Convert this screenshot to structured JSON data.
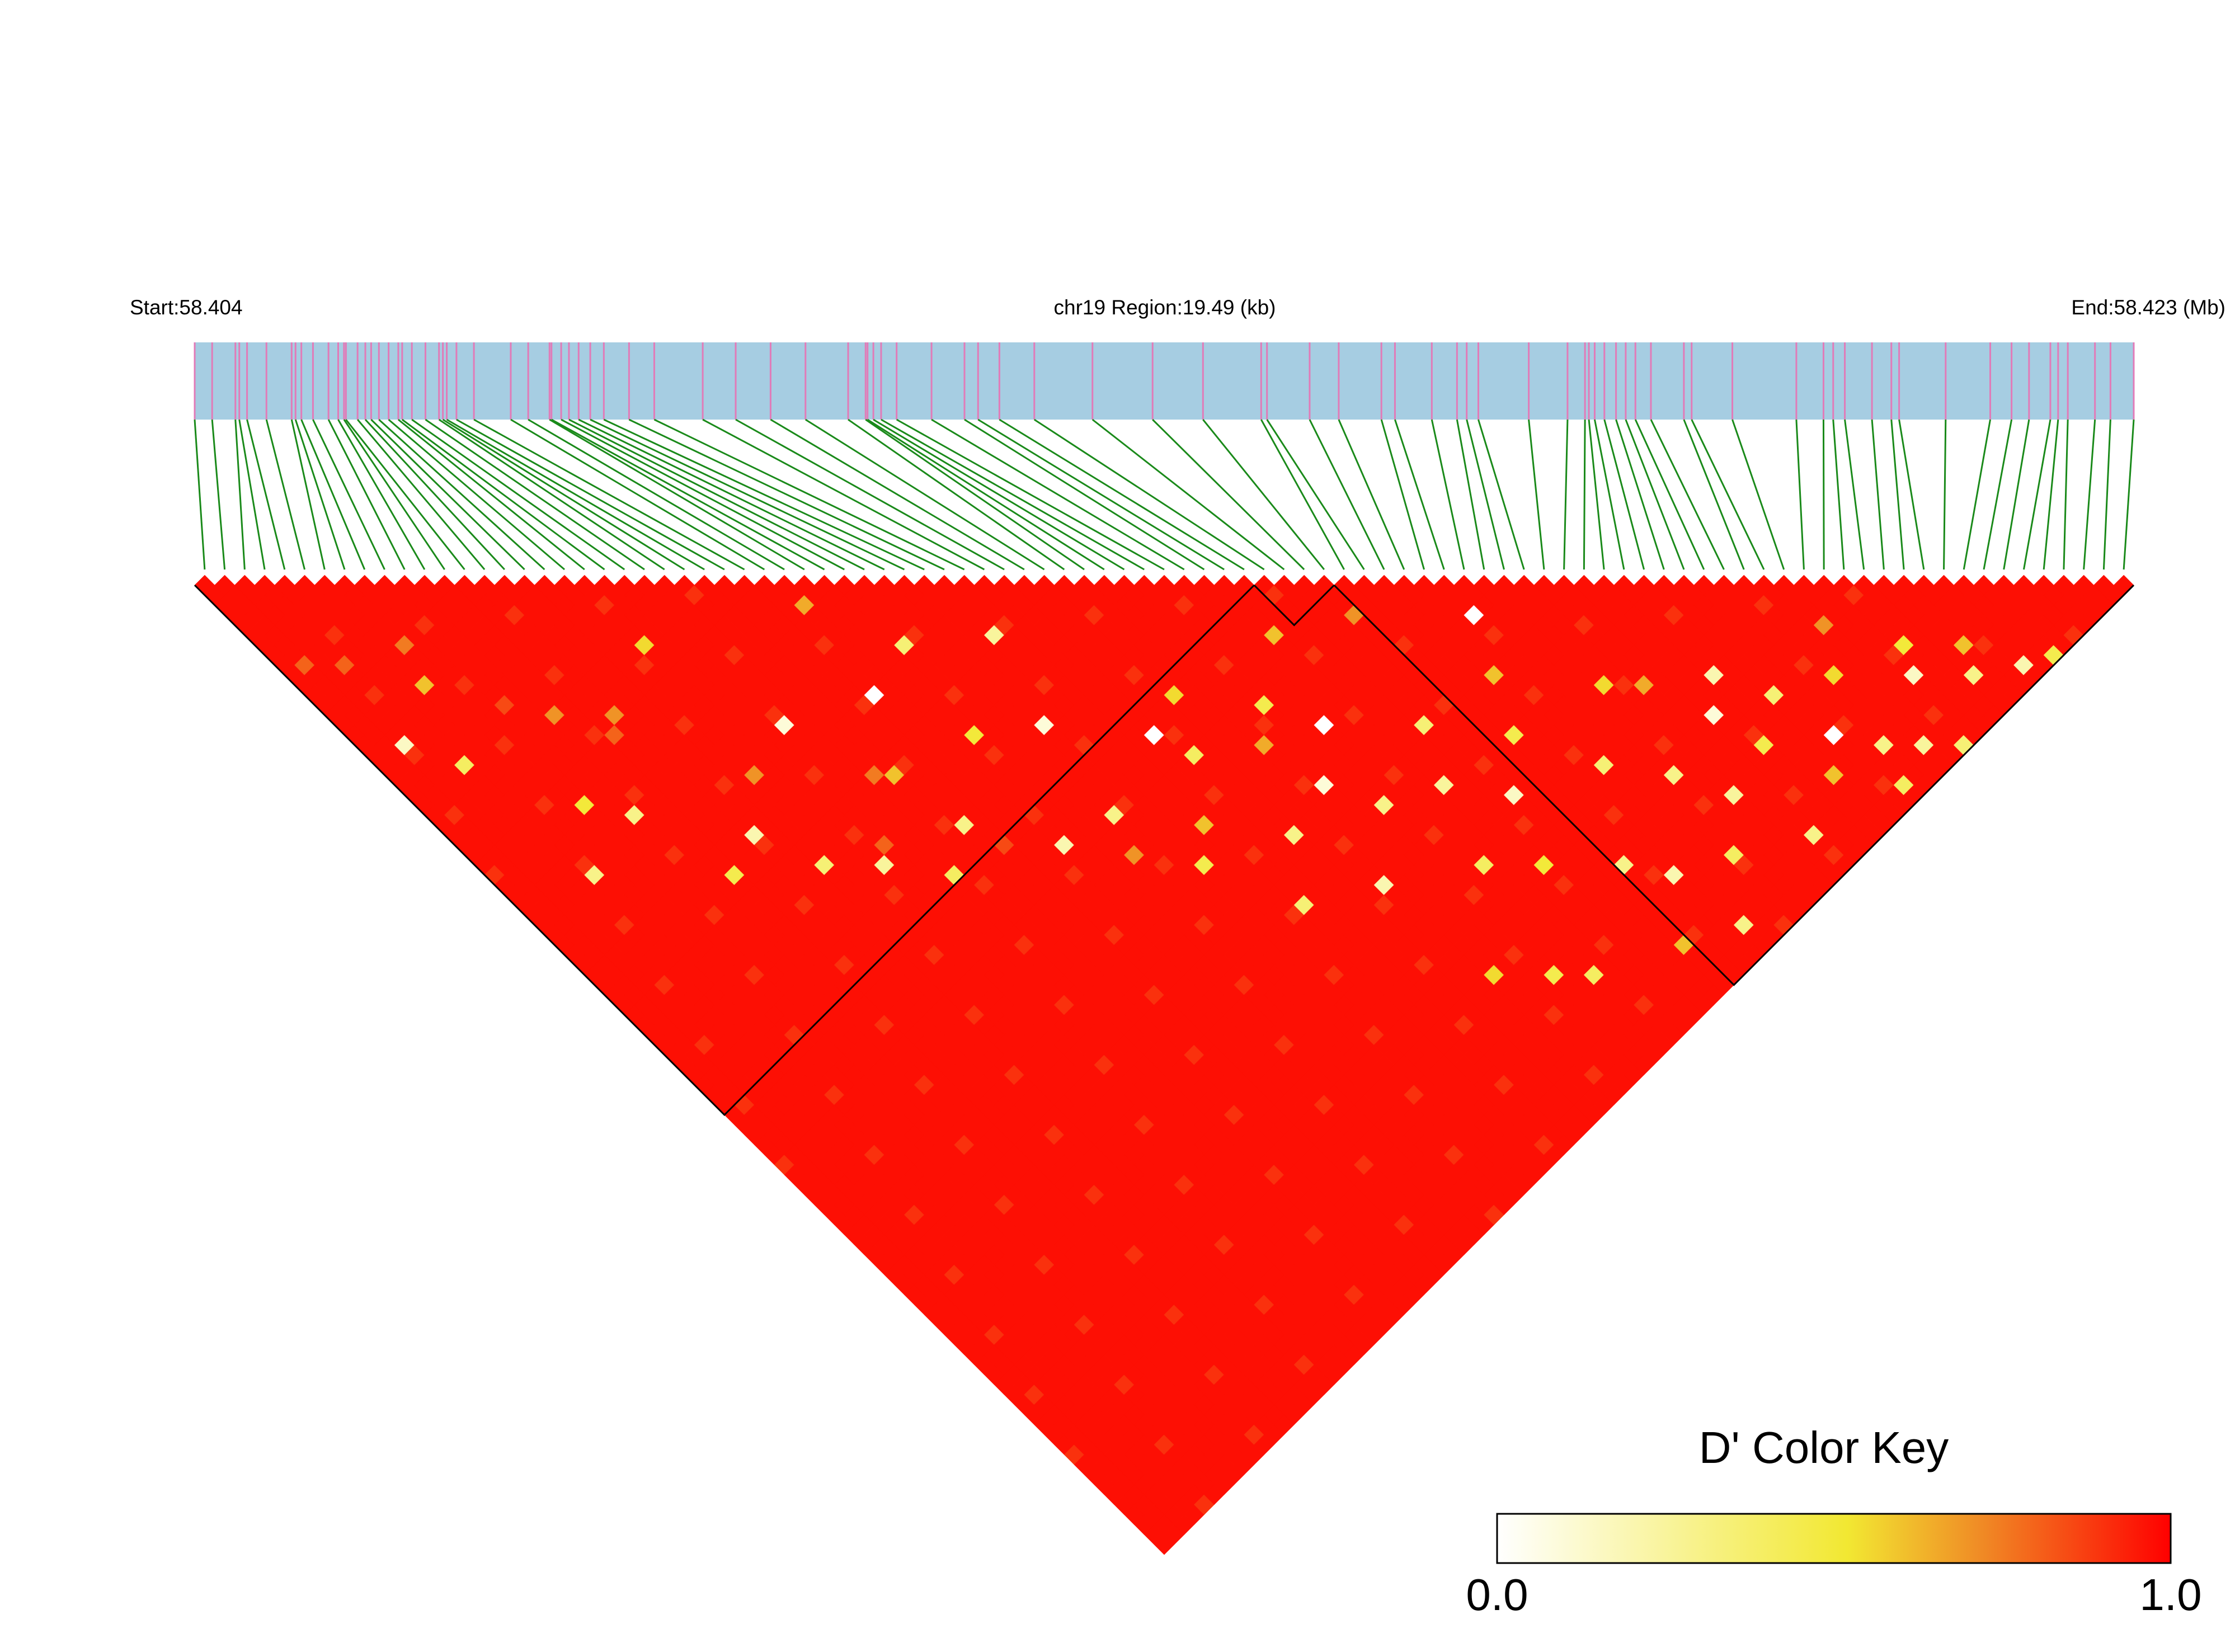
{
  "chart_data": {
    "type": "heatmap",
    "subtype": "ld-triangle",
    "chromosome": "chr19",
    "start_label": "Start:58.404",
    "region_label": "chr19 Region:19.49 (kb)",
    "end_label": "End:58.423 (Mb)",
    "start_mb": 58.404,
    "end_mb": 58.423,
    "region_kb": 19.49,
    "snp_count": 97,
    "snp_positions": [
      0.0,
      0.009,
      0.021,
      0.023,
      0.027,
      0.037,
      0.05,
      0.052,
      0.055,
      0.061,
      0.069,
      0.074,
      0.077,
      0.078,
      0.084,
      0.088,
      0.091,
      0.095,
      0.1,
      0.105,
      0.107,
      0.112,
      0.119,
      0.126,
      0.128,
      0.13,
      0.135,
      0.144,
      0.163,
      0.172,
      0.183,
      0.184,
      0.189,
      0.193,
      0.198,
      0.204,
      0.211,
      0.224,
      0.237,
      0.262,
      0.279,
      0.297,
      0.315,
      0.337,
      0.346,
      0.347,
      0.35,
      0.354,
      0.362,
      0.38,
      0.397,
      0.404,
      0.415,
      0.433,
      0.463,
      0.494,
      0.52,
      0.55,
      0.553,
      0.575,
      0.59,
      0.612,
      0.619,
      0.638,
      0.651,
      0.656,
      0.662,
      0.688,
      0.708,
      0.717,
      0.719,
      0.722,
      0.727,
      0.733,
      0.738,
      0.743,
      0.751,
      0.768,
      0.772,
      0.793,
      0.826,
      0.84,
      0.845,
      0.851,
      0.865,
      0.875,
      0.879,
      0.903,
      0.926,
      0.937,
      0.946,
      0.957,
      0.961,
      0.966,
      0.98,
      0.988,
      1.0
    ],
    "ld_metric": "D'",
    "haplotype_blocks": [
      [
        0,
        53
      ],
      [
        53,
        57
      ],
      [
        57,
        97
      ]
    ],
    "color_key": {
      "title": "D' Color Key",
      "min_label": "0.0",
      "max_label": "1.0",
      "min": 0.0,
      "max": 1.0,
      "colors": [
        "#ffffff",
        "#f2e832",
        "#f08a25",
        "#ff0000"
      ]
    },
    "default_value": 0.97,
    "weak_pairs": [
      [
        2,
        18,
        0.15
      ],
      [
        4,
        22,
        0.4
      ],
      [
        5,
        34,
        0.3
      ],
      [
        6,
        16,
        0.6
      ],
      [
        8,
        30,
        0.5
      ],
      [
        10,
        33,
        0.3
      ],
      [
        12,
        41,
        0.45
      ],
      [
        14,
        27,
        0.7
      ],
      [
        15,
        40,
        0.2
      ],
      [
        17,
        45,
        0.35
      ],
      [
        19,
        25,
        0.55
      ],
      [
        20,
        48,
        0.25
      ],
      [
        22,
        36,
        0.1
      ],
      [
        23,
        52,
        0.4
      ],
      [
        25,
        44,
        0.6
      ],
      [
        26,
        50,
        0.3
      ],
      [
        28,
        39,
        0.0
      ],
      [
        29,
        31,
        0.65
      ],
      [
        30,
        56,
        0.2
      ],
      [
        31,
        46,
        0.5
      ],
      [
        32,
        38,
        0.35
      ],
      [
        33,
        60,
        0.7
      ],
      [
        34,
        57,
        0.3
      ],
      [
        35,
        49,
        0.1
      ],
      [
        36,
        64,
        0.45
      ],
      [
        37,
        42,
        0.25
      ],
      [
        38,
        62,
        0.6
      ],
      [
        39,
        71,
        0.35
      ],
      [
        40,
        55,
        0.0
      ],
      [
        41,
        58,
        0.4
      ],
      [
        42,
        67,
        0.3
      ],
      [
        43,
        54,
        0.55
      ],
      [
        44,
        74,
        0.2
      ],
      [
        45,
        61,
        0.65
      ],
      [
        46,
        66,
        0.1
      ],
      [
        47,
        59,
        0.45
      ],
      [
        48,
        70,
        0.3
      ],
      [
        49,
        63,
        0.0
      ],
      [
        50,
        78,
        0.4
      ],
      [
        51,
        56,
        0.6
      ],
      [
        52,
        72,
        0.25
      ],
      [
        53,
        81,
        0.5
      ],
      [
        54,
        68,
        0.35
      ],
      [
        55,
        76,
        0.15
      ],
      [
        56,
        59,
        0.7
      ],
      [
        57,
        85,
        0.3
      ],
      [
        58,
        73,
        0.45
      ],
      [
        59,
        88,
        0.2
      ],
      [
        60,
        69,
        0.6
      ],
      [
        61,
        79,
        0.35
      ],
      [
        62,
        65,
        0.0
      ],
      [
        63,
        90,
        0.4
      ],
      [
        64,
        83,
        0.3
      ],
      [
        65,
        75,
        0.55
      ],
      [
        66,
        87,
        0.25
      ],
      [
        67,
        77,
        0.65
      ],
      [
        68,
        93,
        0.3
      ],
      [
        69,
        82,
        0.1
      ],
      [
        70,
        86,
        0.45
      ],
      [
        71,
        80,
        0.2
      ],
      [
        72,
        91,
        0.6
      ],
      [
        73,
        84,
        0.35
      ],
      [
        74,
        89,
        0.0
      ],
      [
        75,
        95,
        0.4
      ],
      [
        76,
        92,
        0.3
      ],
      [
        77,
        86,
        0.55
      ],
      [
        78,
        94,
        0.25
      ],
      [
        79,
        83,
        0.7
      ],
      [
        80,
        96,
        0.35
      ],
      [
        81,
        90,
        0.15
      ],
      [
        82,
        88,
        0.5
      ],
      [
        84,
        93,
        0.3
      ],
      [
        85,
        91,
        0.6
      ],
      [
        87,
        95,
        0.2
      ],
      [
        89,
        96,
        0.45
      ],
      [
        3,
        11,
        0.8
      ],
      [
        7,
        13,
        0.75
      ],
      [
        9,
        21,
        0.85
      ],
      [
        13,
        28,
        0.8
      ],
      [
        18,
        37,
        0.7
      ],
      [
        21,
        47,
        0.8
      ],
      [
        24,
        43,
        0.75
      ],
      [
        27,
        53,
        0.85
      ],
      [
        1,
        9,
        0.8
      ],
      [
        11,
        24,
        0.7
      ],
      [
        45,
        84,
        0.55
      ],
      [
        50,
        89,
        0.4
      ],
      [
        60,
        94,
        0.3
      ],
      [
        56,
        92,
        0.6
      ],
      [
        48,
        87,
        0.45
      ]
    ]
  }
}
